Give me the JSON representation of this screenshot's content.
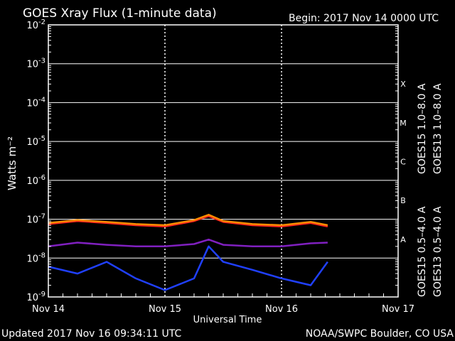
{
  "header": {
    "title": "GOES Xray Flux (1-minute data)",
    "begin": "Begin:  2017 Nov 14 0000 UTC"
  },
  "footer": {
    "updated": "Updated 2017 Nov 16 09:34:11 UTC",
    "credit": "NOAA/SWPC Boulder, CO USA"
  },
  "colors": {
    "background": "#000000",
    "grid": "#ffffff",
    "goes15_long": "#ff2020",
    "goes13_long": "#ff8c00",
    "goes15_short": "#2040ff",
    "goes13_short": "#8020c0"
  },
  "chart_data": {
    "type": "line",
    "title": "GOES Xray Flux (1-minute data)",
    "xlabel": "Universal Time",
    "ylabel": "Watts m⁻²",
    "yscale": "log",
    "ylim": [
      1e-09,
      0.01
    ],
    "xlim": [
      "2017-11-14T00:00Z",
      "2017-11-17T00:00Z"
    ],
    "x_ticks": [
      "Nov 14",
      "Nov 15",
      "Nov 16",
      "Nov 17"
    ],
    "y_ticks": [
      {
        "base": "10",
        "exp": "-9"
      },
      {
        "base": "10",
        "exp": "-8"
      },
      {
        "base": "10",
        "exp": "-7"
      },
      {
        "base": "10",
        "exp": "-6"
      },
      {
        "base": "10",
        "exp": "-5"
      },
      {
        "base": "10",
        "exp": "-4"
      },
      {
        "base": "10",
        "exp": "-3"
      },
      {
        "base": "10",
        "exp": "-2"
      }
    ],
    "flare_classes": [
      "A",
      "B",
      "C",
      "M",
      "X"
    ],
    "grid": true,
    "legend_position": "right",
    "series": [
      {
        "name": "GOES15 1.0–8.0 A",
        "color": "#ff2020",
        "x": [
          "2017-11-14T00:00Z",
          "2017-11-14T06:00Z",
          "2017-11-14T12:00Z",
          "2017-11-14T18:00Z",
          "2017-11-15T00:00Z",
          "2017-11-15T06:00Z",
          "2017-11-15T09:00Z",
          "2017-11-15T12:00Z",
          "2017-11-15T18:00Z",
          "2017-11-16T00:00Z",
          "2017-11-16T06:00Z",
          "2017-11-16T09:30Z"
        ],
        "y": [
          7.5e-08,
          9e-08,
          8e-08,
          7e-08,
          6.5e-08,
          9e-08,
          1.2e-07,
          8.5e-08,
          7e-08,
          6.5e-08,
          8e-08,
          6.5e-08
        ]
      },
      {
        "name": "GOES13 1.0–8.0 A",
        "color": "#ff8c00",
        "x": [
          "2017-11-14T00:00Z",
          "2017-11-14T06:00Z",
          "2017-11-14T12:00Z",
          "2017-11-14T18:00Z",
          "2017-11-15T00:00Z",
          "2017-11-15T06:00Z",
          "2017-11-15T09:00Z",
          "2017-11-15T12:00Z",
          "2017-11-15T18:00Z",
          "2017-11-16T00:00Z",
          "2017-11-16T06:00Z",
          "2017-11-16T09:30Z"
        ],
        "y": [
          8e-08,
          9.5e-08,
          8.5e-08,
          7.5e-08,
          7e-08,
          9.5e-08,
          1.3e-07,
          9e-08,
          7.5e-08,
          7e-08,
          8.5e-08,
          7e-08
        ]
      },
      {
        "name": "GOES15 0.5–4.0 A",
        "color": "#2040ff",
        "x": [
          "2017-11-14T00:00Z",
          "2017-11-14T06:00Z",
          "2017-11-14T12:00Z",
          "2017-11-14T18:00Z",
          "2017-11-15T00:00Z",
          "2017-11-15T06:00Z",
          "2017-11-15T09:00Z",
          "2017-11-15T12:00Z",
          "2017-11-15T18:00Z",
          "2017-11-16T00:00Z",
          "2017-11-16T06:00Z",
          "2017-11-16T09:30Z"
        ],
        "y": [
          6e-09,
          4e-09,
          8e-09,
          3e-09,
          1.5e-09,
          3e-09,
          2e-08,
          8e-09,
          5e-09,
          3e-09,
          2e-09,
          8e-09
        ]
      },
      {
        "name": "GOES13 0.5–4.0 A",
        "color": "#8020c0",
        "x": [
          "2017-11-14T00:00Z",
          "2017-11-14T06:00Z",
          "2017-11-14T12:00Z",
          "2017-11-14T18:00Z",
          "2017-11-15T00:00Z",
          "2017-11-15T06:00Z",
          "2017-11-15T09:00Z",
          "2017-11-15T12:00Z",
          "2017-11-15T18:00Z",
          "2017-11-16T00:00Z",
          "2017-11-16T06:00Z",
          "2017-11-16T09:30Z"
        ],
        "y": [
          2e-08,
          2.5e-08,
          2.2e-08,
          2e-08,
          2e-08,
          2.3e-08,
          3e-08,
          2.2e-08,
          2e-08,
          2e-08,
          2.4e-08,
          2.5e-08
        ]
      }
    ]
  }
}
